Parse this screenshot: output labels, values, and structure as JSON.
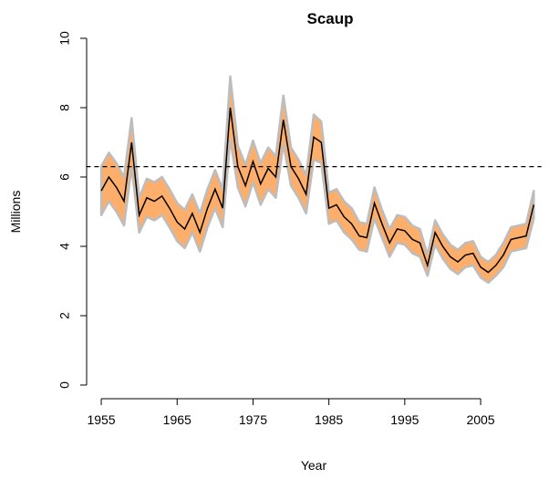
{
  "chart_data": {
    "type": "band-line",
    "title": "Scaup",
    "xlabel": "Year",
    "ylabel": "Millions",
    "x": [
      1955,
      1956,
      1957,
      1958,
      1959,
      1960,
      1961,
      1962,
      1963,
      1964,
      1965,
      1966,
      1967,
      1968,
      1969,
      1970,
      1971,
      1972,
      1973,
      1974,
      1975,
      1976,
      1977,
      1978,
      1979,
      1980,
      1981,
      1982,
      1983,
      1984,
      1985,
      1986,
      1987,
      1988,
      1989,
      1990,
      1991,
      1992,
      1993,
      1994,
      1995,
      1996,
      1997,
      1998,
      1999,
      2000,
      2001,
      2002,
      2003,
      2004,
      2005,
      2006,
      2007,
      2008,
      2009,
      2010,
      2011,
      2012
    ],
    "series": [
      {
        "color": "#000000",
        "values": [
          5.6,
          6.0,
          5.7,
          5.3,
          7.0,
          4.9,
          5.4,
          5.3,
          5.45,
          5.1,
          4.7,
          4.5,
          4.95,
          4.4,
          5.1,
          5.65,
          5.1,
          8.0,
          6.3,
          5.75,
          6.45,
          5.8,
          6.25,
          6.0,
          7.65,
          6.3,
          5.95,
          5.5,
          7.15,
          7.0,
          5.1,
          5.2,
          4.85,
          4.65,
          4.3,
          4.25,
          5.25,
          4.65,
          4.1,
          4.5,
          4.45,
          4.2,
          4.1,
          3.45,
          4.4,
          4.0,
          3.7,
          3.55,
          3.75,
          3.8,
          3.4,
          3.25,
          3.45,
          3.75,
          4.2,
          4.25,
          4.3,
          5.2
        ]
      }
    ],
    "band": {
      "color": "#fdae6b",
      "edge_color": "#bdbdbd",
      "lower": [
        4.9,
        5.3,
        5.0,
        4.6,
        6.3,
        4.4,
        4.85,
        4.75,
        4.9,
        4.55,
        4.15,
        3.95,
        4.4,
        3.85,
        4.55,
        5.1,
        4.55,
        7.1,
        5.7,
        5.15,
        5.85,
        5.2,
        5.65,
        5.4,
        6.95,
        5.75,
        5.4,
        4.95,
        6.5,
        6.4,
        4.65,
        4.75,
        4.4,
        4.2,
        3.9,
        3.85,
        4.8,
        4.25,
        3.7,
        4.1,
        4.05,
        3.8,
        3.7,
        3.15,
        4.05,
        3.65,
        3.35,
        3.2,
        3.4,
        3.45,
        3.1,
        2.95,
        3.15,
        3.4,
        3.85,
        3.9,
        3.95,
        4.8
      ],
      "upper": [
        6.3,
        6.7,
        6.4,
        6.0,
        7.7,
        5.4,
        5.95,
        5.85,
        6.0,
        5.65,
        5.25,
        5.05,
        5.5,
        4.95,
        5.65,
        6.2,
        5.65,
        8.9,
        6.9,
        6.35,
        7.05,
        6.4,
        6.85,
        6.6,
        8.35,
        6.85,
        6.5,
        6.05,
        7.8,
        7.6,
        5.55,
        5.65,
        5.3,
        5.1,
        4.7,
        4.65,
        5.7,
        5.05,
        4.5,
        4.9,
        4.85,
        4.6,
        4.5,
        3.75,
        4.75,
        4.35,
        4.05,
        3.9,
        4.1,
        4.15,
        3.7,
        3.55,
        3.75,
        4.1,
        4.55,
        4.6,
        4.65,
        5.6
      ]
    },
    "hline": 6.3,
    "xlim": [
      1953,
      2013
    ],
    "xticks": [
      1955,
      1965,
      1975,
      1985,
      1995,
      2005
    ],
    "ylim": [
      -0.4,
      10.4
    ],
    "yticks": [
      0,
      2,
      4,
      6,
      8,
      10
    ]
  }
}
